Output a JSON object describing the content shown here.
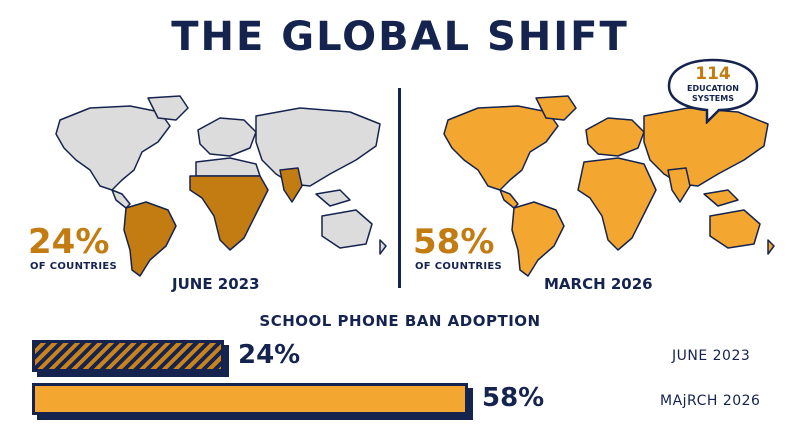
{
  "title": "THE GLOBAL SHIFT",
  "colors": {
    "navy": "#15234f",
    "orange": "#f4a730",
    "dark_orange": "#c27c12",
    "grey_land": "#dcdcdc"
  },
  "left_panel": {
    "pct": "24%",
    "sub": "OF COUNTRIES",
    "date": "JUNE 2023"
  },
  "right_panel": {
    "pct": "58%",
    "sub": "OF COUNTRIES",
    "date": "MARCH 2026"
  },
  "callout": {
    "number": "114",
    "text_line1": "EDUCATION",
    "text_line2": "SYSTEMS"
  },
  "section_title": "SCHOOL PHONE BAN ADOPTION",
  "bars": [
    {
      "value": 24,
      "label": "24%",
      "date": "JUNE 2023",
      "pattern": "hatched"
    },
    {
      "value": 58,
      "label": "58%",
      "date": "MAjRCH 2026",
      "pattern": "solid"
    }
  ],
  "icons": {
    "map_left": "world-map-icon",
    "map_right": "world-map-icon",
    "speech_bubble": "speech-bubble-icon"
  }
}
